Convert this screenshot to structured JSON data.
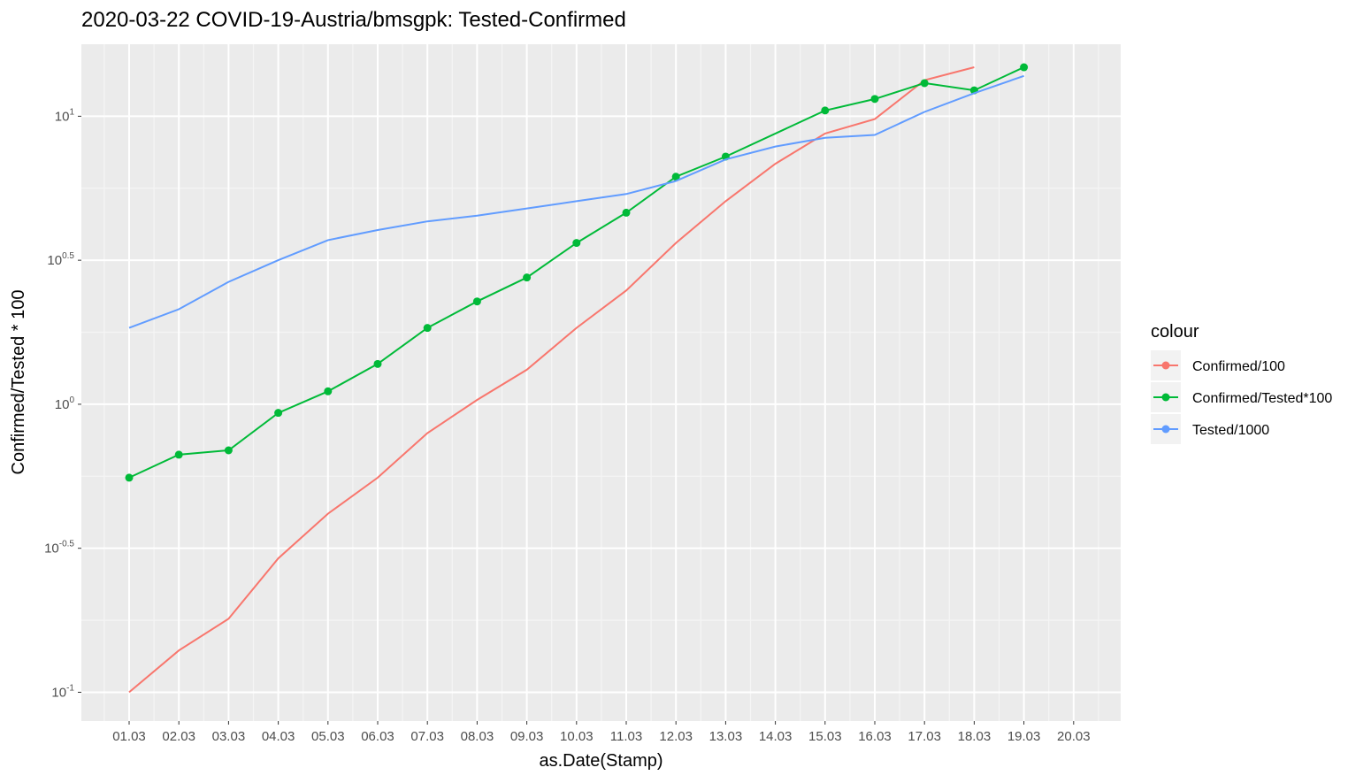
{
  "chart_data": {
    "type": "line",
    "title": "2020-03-22 COVID-19-Austria/bmsgpk: Tested-Confirmed",
    "xlabel": "as.Date(Stamp)",
    "ylabel": "Confirmed/Tested * 100",
    "y_scale": "log10",
    "ylim": [
      -1.1,
      1.25
    ],
    "y_ticks": [
      {
        "base": "10",
        "exp": "1",
        "value": 1
      },
      {
        "base": "10",
        "exp": "0.5",
        "value": 0.5
      },
      {
        "base": "10",
        "exp": "0",
        "value": 0
      },
      {
        "base": "10",
        "exp": "-0.5",
        "value": -0.5
      },
      {
        "base": "10",
        "exp": "-1",
        "value": -1
      }
    ],
    "categories": [
      "01.03",
      "02.03",
      "03.03",
      "04.03",
      "05.03",
      "06.03",
      "07.03",
      "08.03",
      "09.03",
      "10.03",
      "11.03",
      "12.03",
      "13.03",
      "14.03",
      "15.03",
      "16.03",
      "17.03",
      "18.03",
      "19.03",
      "20.03"
    ],
    "grid": true,
    "legend": {
      "title": "colour",
      "position": "right"
    },
    "series": [
      {
        "name": "Confirmed/100",
        "color": "#F8766D",
        "points": false,
        "values_log10": [
          -1.0,
          -0.855,
          -0.745,
          -0.535,
          -0.38,
          -0.255,
          -0.1,
          0.015,
          0.12,
          0.265,
          0.395,
          0.56,
          0.705,
          0.835,
          0.94,
          0.99,
          1.125,
          1.17,
          null,
          null
        ]
      },
      {
        "name": "Confirmed/Tested*100",
        "color": "#00BA38",
        "points": true,
        "values_log10": [
          -0.255,
          -0.175,
          -0.16,
          -0.03,
          0.045,
          0.14,
          0.265,
          0.357,
          0.44,
          0.56,
          0.665,
          0.79,
          0.86,
          null,
          1.02,
          1.06,
          1.115,
          1.09,
          1.17,
          null
        ]
      },
      {
        "name": "Tested/1000",
        "color": "#619CFF",
        "points": false,
        "values_log10": [
          0.265,
          0.33,
          0.425,
          0.5,
          0.57,
          0.605,
          0.635,
          0.655,
          0.68,
          0.705,
          0.73,
          0.775,
          0.85,
          0.895,
          0.925,
          0.935,
          1.015,
          1.08,
          1.14,
          null
        ]
      }
    ]
  }
}
